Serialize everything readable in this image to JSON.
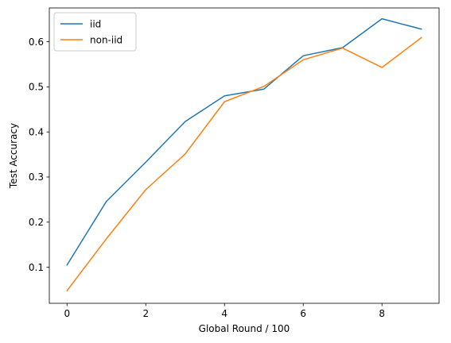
{
  "chart_data": {
    "type": "line",
    "title": "",
    "xlabel": "Global Round / 100",
    "ylabel": "Test Accuracy",
    "x": [
      0,
      1,
      2,
      3,
      4,
      5,
      6,
      7,
      8,
      9
    ],
    "xlim": [
      -0.45,
      9.45
    ],
    "ylim": [
      0.02,
      0.675
    ],
    "xticks": [
      0,
      2,
      4,
      6,
      8
    ],
    "xtick_labels": [
      "0",
      "2",
      "4",
      "6",
      "8"
    ],
    "yticks": [
      0.1,
      0.2,
      0.3,
      0.4,
      0.5,
      0.6
    ],
    "ytick_labels": [
      "0.1",
      "0.2",
      "0.3",
      "0.4",
      "0.5",
      "0.6"
    ],
    "grid": false,
    "legend_position": "top-left",
    "series": [
      {
        "name": "iid",
        "color": "#1f77b4",
        "values": [
          0.105,
          0.246,
          0.333,
          0.423,
          0.48,
          0.495,
          0.569,
          0.587,
          0.651,
          0.628
        ]
      },
      {
        "name": "non-iid",
        "color": "#ff7f0e",
        "values": [
          0.048,
          0.163,
          0.272,
          0.351,
          0.467,
          0.501,
          0.56,
          0.586,
          0.543,
          0.609
        ]
      }
    ]
  }
}
